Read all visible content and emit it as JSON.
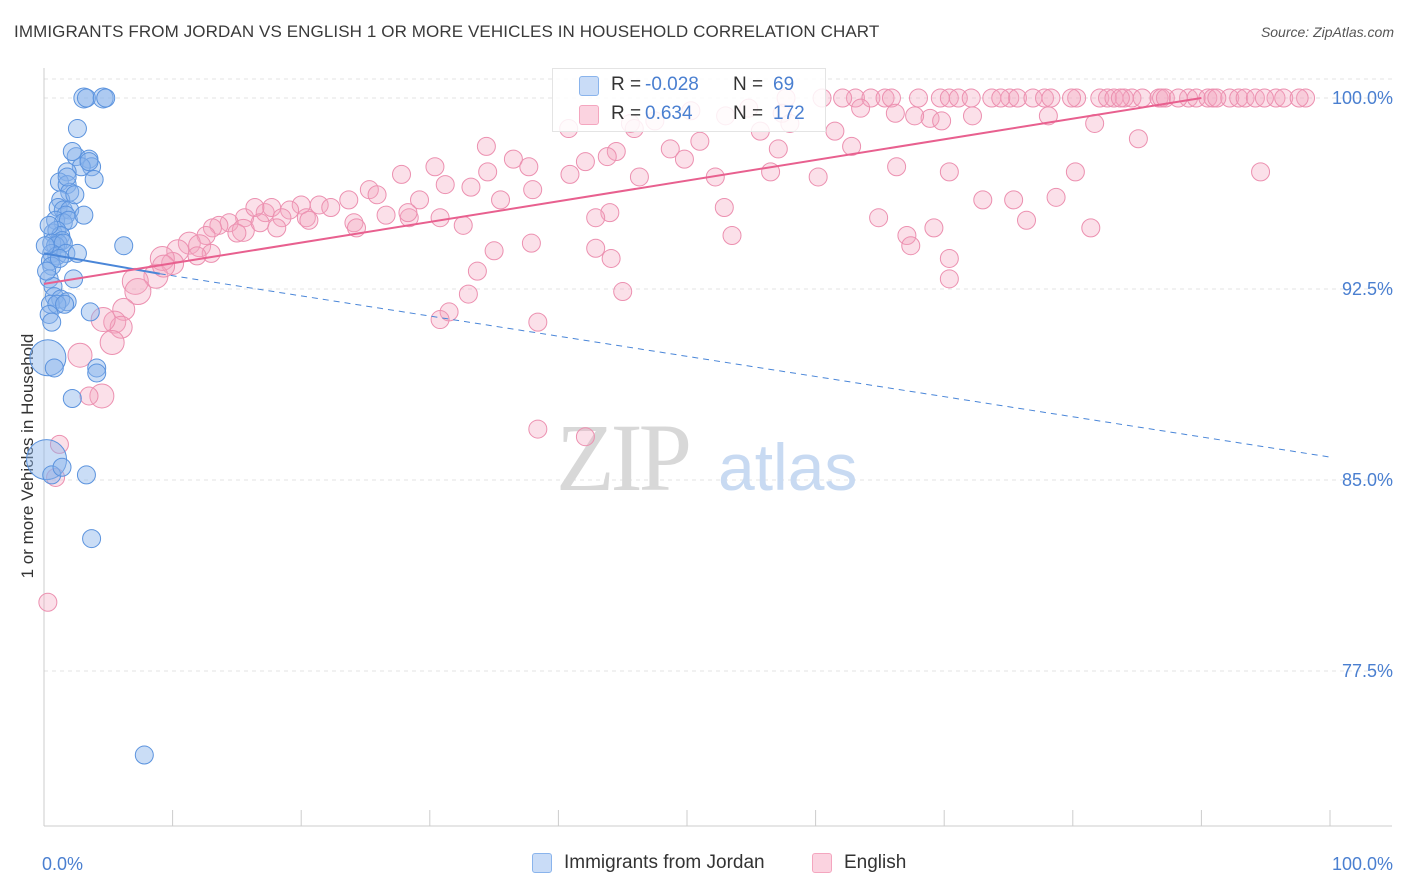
{
  "title": "IMMIGRANTS FROM JORDAN VS ENGLISH 1 OR MORE VEHICLES IN HOUSEHOLD CORRELATION CHART",
  "source": "Source: ZipAtlas.com",
  "watermark": {
    "zip": "ZIP",
    "atlas": "atlas"
  },
  "stats": [
    {
      "r_label": "R =",
      "r_value": "-0.028",
      "n_label": "N =",
      "n_value": "69",
      "color": "#8ab4ec"
    },
    {
      "r_label": "R =",
      "r_value": "0.634",
      "n_label": "N =",
      "n_value": "172",
      "color": "#f4a6bf"
    }
  ],
  "legend": [
    {
      "label": "Immigrants from Jordan",
      "color": "#8ab4ec"
    },
    {
      "label": "English",
      "color": "#f4a6bf"
    }
  ],
  "colors": {
    "blue": "#4a86d8",
    "blue_fill": "#8ab4ec",
    "pink": "#e8608f",
    "pink_fill": "#f4a6bf",
    "axis_label": "#4a7fd0"
  },
  "chart_data": {
    "type": "scatter",
    "title": "IMMIGRANTS FROM JORDAN VS ENGLISH 1 OR MORE VEHICLES IN HOUSEHOLD CORRELATION CHART",
    "xlabel": "",
    "ylabel": "1 or more Vehicles in Household",
    "xlim": [
      0,
      100
    ],
    "ylim": [
      70.0,
      101.5
    ],
    "x_tick_labels": [
      "0.0%",
      "100.0%"
    ],
    "y_ticks": [
      77.5,
      85.0,
      92.5,
      100.0
    ],
    "y_tick_labels": [
      "77.5%",
      "85.0%",
      "92.5%",
      "100.0%"
    ],
    "grid": true,
    "legend_position": "bottom",
    "series": [
      {
        "name": "Immigrants from Jordan",
        "color": "#8ab4ec",
        "trend": {
          "x": [
            0,
            9
          ],
          "y": [
            93.9,
            93.1
          ],
          "extended_x": [
            9,
            100
          ],
          "extended_y": [
            93.1,
            85.9
          ]
        },
        "points": [
          [
            3.1,
            100
          ],
          [
            3.3,
            100
          ],
          [
            4.6,
            100
          ],
          [
            4.8,
            100
          ],
          [
            2.6,
            98.8
          ],
          [
            2.5,
            97.7
          ],
          [
            3.5,
            97.6
          ],
          [
            3.7,
            97.3
          ],
          [
            2.9,
            97.3
          ],
          [
            3.5,
            97.5
          ],
          [
            1.8,
            97.1
          ],
          [
            1.2,
            96.7
          ],
          [
            1.8,
            96.6
          ],
          [
            2.0,
            96.3
          ],
          [
            3.9,
            96.8
          ],
          [
            1.3,
            96.0
          ],
          [
            1.1,
            95.7
          ],
          [
            1.5,
            95.6
          ],
          [
            2.0,
            95.6
          ],
          [
            1.7,
            95.4
          ],
          [
            0.9,
            95.2
          ],
          [
            1.5,
            95.1
          ],
          [
            1.9,
            95.2
          ],
          [
            0.7,
            94.7
          ],
          [
            1.0,
            94.8
          ],
          [
            1.3,
            94.6
          ],
          [
            1.4,
            94.4
          ],
          [
            1.1,
            94.3
          ],
          [
            0.6,
            94.3
          ],
          [
            0.9,
            94.2
          ],
          [
            1.5,
            94.3
          ],
          [
            0.6,
            93.9
          ],
          [
            1.0,
            93.8
          ],
          [
            1.7,
            93.9
          ],
          [
            2.6,
            93.9
          ],
          [
            0.5,
            93.6
          ],
          [
            0.6,
            93.4
          ],
          [
            1.2,
            93.7
          ],
          [
            6.2,
            94.2
          ],
          [
            0.4,
            92.9
          ],
          [
            2.3,
            92.9
          ],
          [
            0.7,
            92.6
          ],
          [
            0.8,
            92.2
          ],
          [
            1.3,
            92.1
          ],
          [
            1.8,
            92.0
          ],
          [
            0.5,
            91.9
          ],
          [
            1.0,
            91.9
          ],
          [
            0.4,
            91.5
          ],
          [
            0.6,
            91.2
          ],
          [
            3.6,
            91.6
          ],
          [
            0.3,
            89.8
          ],
          [
            0.8,
            89.4
          ],
          [
            4.1,
            89.4
          ],
          [
            4.1,
            89.2
          ],
          [
            2.2,
            88.2
          ],
          [
            0.2,
            85.8
          ],
          [
            0.6,
            85.2
          ],
          [
            1.4,
            85.5
          ],
          [
            3.3,
            85.2
          ],
          [
            3.7,
            82.7
          ],
          [
            7.8,
            74.2
          ],
          [
            0.1,
            94.2
          ],
          [
            0.2,
            93.2
          ],
          [
            1.6,
            91.9
          ],
          [
            2.4,
            96.2
          ],
          [
            3.1,
            95.4
          ],
          [
            2.2,
            97.9
          ],
          [
            0.4,
            95.0
          ],
          [
            1.8,
            96.9
          ]
        ],
        "sizes": [
          10,
          9,
          10,
          9,
          9,
          9,
          9,
          9,
          9,
          9,
          9,
          9,
          9,
          9,
          9,
          9,
          9,
          9,
          9,
          9,
          9,
          9,
          9,
          9,
          9,
          9,
          9,
          9,
          9,
          9,
          9,
          9,
          9,
          9,
          9,
          9,
          9,
          9,
          9,
          9,
          9,
          9,
          9,
          9,
          9,
          9,
          9,
          9,
          9,
          9,
          18,
          9,
          9,
          9,
          9,
          20,
          9,
          9,
          9,
          9,
          9,
          9,
          9,
          9,
          9,
          9,
          9,
          9,
          9
        ]
      },
      {
        "name": "English",
        "color": "#f4a6bf",
        "trend": {
          "x": [
            0,
            90
          ],
          "y": [
            92.7,
            100.0
          ]
        },
        "points": [
          [
            60.5,
            100
          ],
          [
            63.1,
            100
          ],
          [
            64.3,
            100
          ],
          [
            65.4,
            100
          ],
          [
            65.9,
            100
          ],
          [
            68.0,
            100
          ],
          [
            69.7,
            100
          ],
          [
            70.4,
            100
          ],
          [
            71.1,
            100
          ],
          [
            73.7,
            100
          ],
          [
            75.1,
            100
          ],
          [
            75.7,
            100
          ],
          [
            76.9,
            100
          ],
          [
            77.8,
            100
          ],
          [
            78.3,
            100
          ],
          [
            80.3,
            100
          ],
          [
            82.1,
            100
          ],
          [
            82.7,
            100
          ],
          [
            83.2,
            100
          ],
          [
            84.0,
            100
          ],
          [
            84.6,
            100
          ],
          [
            85.4,
            100
          ],
          [
            86.7,
            100
          ],
          [
            86.9,
            100
          ],
          [
            89.0,
            100
          ],
          [
            89.6,
            100
          ],
          [
            90.5,
            100
          ],
          [
            90.9,
            100
          ],
          [
            92.2,
            100
          ],
          [
            92.9,
            100
          ],
          [
            93.4,
            100
          ],
          [
            94.2,
            100
          ],
          [
            95.8,
            100
          ],
          [
            96.4,
            100
          ],
          [
            98.1,
            100
          ],
          [
            72.1,
            100
          ],
          [
            74.4,
            100
          ],
          [
            79.9,
            100
          ],
          [
            83.7,
            100
          ],
          [
            87.2,
            100
          ],
          [
            88.2,
            100
          ],
          [
            91.2,
            100
          ],
          [
            94.9,
            100
          ],
          [
            97.6,
            100
          ],
          [
            57.7,
            100
          ],
          [
            62.1,
            100
          ],
          [
            63.5,
            99.6
          ],
          [
            66.2,
            99.4
          ],
          [
            68.9,
            99.2
          ],
          [
            72.2,
            99.3
          ],
          [
            69.8,
            99.1
          ],
          [
            67.7,
            99.3
          ],
          [
            54.8,
            99.6
          ],
          [
            50.3,
            99.5
          ],
          [
            45.6,
            99.0
          ],
          [
            40.8,
            98.8
          ],
          [
            57.4,
            99.4
          ],
          [
            53.0,
            99.3
          ],
          [
            47.5,
            99.1
          ],
          [
            45.9,
            98.8
          ],
          [
            62.8,
            98.1
          ],
          [
            61.5,
            98.7
          ],
          [
            58.0,
            99.0
          ],
          [
            55.7,
            98.7
          ],
          [
            51.0,
            98.3
          ],
          [
            48.7,
            98.0
          ],
          [
            44.5,
            97.9
          ],
          [
            42.1,
            97.5
          ],
          [
            36.5,
            97.6
          ],
          [
            34.4,
            98.1
          ],
          [
            37.7,
            97.3
          ],
          [
            34.5,
            97.1
          ],
          [
            30.4,
            97.3
          ],
          [
            27.8,
            97.0
          ],
          [
            25.3,
            96.4
          ],
          [
            23.7,
            96.0
          ],
          [
            25.9,
            96.2
          ],
          [
            20.0,
            95.8
          ],
          [
            21.4,
            95.8
          ],
          [
            19.1,
            95.6
          ],
          [
            17.2,
            95.5
          ],
          [
            17.7,
            95.7
          ],
          [
            15.6,
            95.3
          ],
          [
            16.4,
            95.7
          ],
          [
            14.4,
            95.1
          ],
          [
            13.6,
            95.0
          ],
          [
            13.1,
            94.9
          ],
          [
            12.6,
            94.6
          ],
          [
            11.3,
            94.3
          ],
          [
            10.4,
            94.0
          ],
          [
            10.0,
            93.5
          ],
          [
            12.1,
            94.2
          ],
          [
            8.7,
            93.0
          ],
          [
            7.1,
            92.8
          ],
          [
            7.3,
            92.4
          ],
          [
            9.2,
            93.7
          ],
          [
            15.5,
            94.8
          ],
          [
            18.5,
            95.3
          ],
          [
            20.4,
            95.3
          ],
          [
            22.3,
            95.7
          ],
          [
            24.1,
            95.1
          ],
          [
            26.6,
            95.4
          ],
          [
            28.4,
            95.3
          ],
          [
            29.2,
            96.0
          ],
          [
            31.2,
            96.6
          ],
          [
            33.2,
            96.5
          ],
          [
            35.5,
            96.0
          ],
          [
            38.0,
            96.4
          ],
          [
            40.9,
            97.0
          ],
          [
            43.8,
            97.7
          ],
          [
            46.3,
            96.9
          ],
          [
            49.8,
            97.6
          ],
          [
            52.2,
            96.9
          ],
          [
            56.5,
            97.1
          ],
          [
            60.2,
            96.9
          ],
          [
            66.3,
            97.3
          ],
          [
            70.4,
            97.1
          ],
          [
            73.0,
            96.0
          ],
          [
            76.4,
            95.2
          ],
          [
            78.7,
            96.1
          ],
          [
            67.1,
            94.6
          ],
          [
            70.4,
            93.7
          ],
          [
            52.9,
            95.7
          ],
          [
            53.5,
            94.6
          ],
          [
            44.0,
            95.5
          ],
          [
            42.9,
            95.3
          ],
          [
            37.9,
            94.3
          ],
          [
            35.0,
            94.0
          ],
          [
            32.6,
            95.0
          ],
          [
            30.8,
            95.3
          ],
          [
            28.3,
            95.5
          ],
          [
            24.3,
            94.9
          ],
          [
            20.6,
            95.2
          ],
          [
            18.1,
            94.9
          ],
          [
            16.8,
            95.1
          ],
          [
            15.0,
            94.7
          ],
          [
            13.0,
            93.9
          ],
          [
            11.9,
            93.8
          ],
          [
            9.3,
            93.4
          ],
          [
            6.2,
            91.7
          ],
          [
            5.5,
            91.2
          ],
          [
            6.0,
            91.0
          ],
          [
            4.6,
            91.3
          ],
          [
            5.3,
            90.4
          ],
          [
            4.5,
            88.3
          ],
          [
            2.8,
            89.9
          ],
          [
            3.5,
            88.3
          ],
          [
            1.2,
            86.4
          ],
          [
            0.9,
            85.1
          ],
          [
            0.3,
            80.2
          ],
          [
            44.1,
            93.7
          ],
          [
            42.9,
            94.1
          ],
          [
            45.0,
            92.4
          ],
          [
            33.7,
            93.2
          ],
          [
            33.0,
            92.3
          ],
          [
            31.5,
            91.6
          ],
          [
            30.8,
            91.3
          ],
          [
            38.4,
            91.2
          ],
          [
            38.4,
            87.0
          ],
          [
            42.1,
            86.7
          ],
          [
            64.9,
            95.3
          ],
          [
            67.4,
            94.2
          ],
          [
            69.2,
            94.9
          ],
          [
            85.1,
            98.4
          ],
          [
            94.6,
            97.1
          ],
          [
            70.4,
            92.9
          ],
          [
            75.4,
            96.0
          ],
          [
            80.2,
            97.1
          ],
          [
            81.4,
            94.9
          ],
          [
            57.1,
            98.0
          ],
          [
            78.1,
            99.3
          ],
          [
            81.7,
            99.0
          ]
        ],
        "sizes": [
          9,
          9,
          9,
          9,
          9,
          9,
          9,
          9,
          9,
          9,
          9,
          9,
          9,
          9,
          9,
          9,
          9,
          9,
          9,
          9,
          9,
          9,
          9,
          9,
          9,
          9,
          9,
          9,
          9,
          9,
          9,
          9,
          9,
          9,
          9,
          9,
          9,
          9,
          9,
          9,
          9,
          9,
          9,
          9,
          9,
          9,
          9,
          9,
          9,
          9,
          9,
          9,
          9,
          9,
          9,
          9,
          9,
          9,
          9,
          9,
          9,
          9,
          9,
          9,
          9,
          9,
          9,
          9,
          9,
          9,
          9,
          9,
          9,
          9,
          9,
          9,
          9,
          9,
          9,
          9,
          9,
          9,
          9,
          9,
          9,
          9,
          9,
          9,
          11,
          11,
          11,
          11,
          12,
          13,
          13,
          12,
          11,
          9,
          9,
          9,
          9,
          9,
          9,
          9,
          9,
          9,
          9,
          9,
          9,
          9,
          9,
          9,
          9,
          9,
          9,
          9,
          9,
          9,
          9,
          9,
          9,
          9,
          9,
          9,
          9,
          9,
          9,
          9,
          9,
          9,
          9,
          9,
          9,
          9,
          9,
          9,
          9,
          9,
          11,
          11,
          11,
          11,
          12,
          12,
          12,
          12,
          9,
          9,
          9,
          9,
          9,
          9,
          9,
          9,
          9,
          9,
          9,
          9,
          9,
          9,
          9,
          9,
          9,
          9,
          9,
          9,
          9,
          9,
          9,
          9
        ]
      }
    ]
  }
}
